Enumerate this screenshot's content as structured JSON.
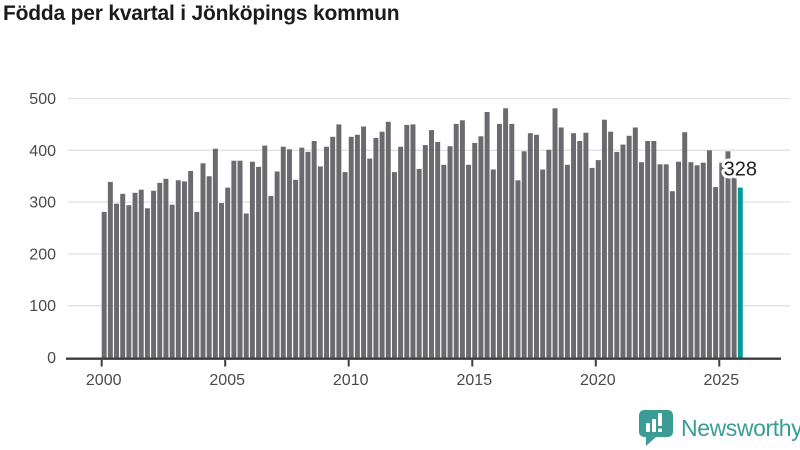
{
  "title": "Födda per kvartal i Jönköpings kommun",
  "branding": {
    "logo_text": "Newsworthy"
  },
  "colors": {
    "bar": "#6a6a6f",
    "highlight": "#009a9a",
    "gridline": "#e2e2e2",
    "axis": "#3d3d3d",
    "tick_label": "#4a4a4a",
    "title_text": "#1b1b1b",
    "value_label_text": "#222222",
    "brand": "#3a9c94"
  },
  "chart_data": {
    "type": "bar",
    "title": "Födda per kvartal i Jönköpings kommun",
    "frequency": "quarterly",
    "start_period": "2000 Q1",
    "end_period": "2025 Q4",
    "ylim": [
      0,
      500
    ],
    "yticks": [
      0,
      100,
      200,
      300,
      400,
      500
    ],
    "xticks": [
      {
        "label": "2000",
        "index": 0
      },
      {
        "label": "2005",
        "index": 20
      },
      {
        "label": "2010",
        "index": 40
      },
      {
        "label": "2015",
        "index": 60
      },
      {
        "label": "2020",
        "index": 80
      },
      {
        "label": "2025",
        "index": 100
      }
    ],
    "grid": "horizontal",
    "legend": "none",
    "values": [
      281,
      339,
      297,
      316,
      294,
      318,
      324,
      288,
      322,
      337,
      345,
      295,
      342,
      340,
      360,
      281,
      375,
      350,
      403,
      298,
      328,
      380,
      380,
      278,
      378,
      368,
      409,
      312,
      359,
      407,
      402,
      343,
      405,
      397,
      418,
      369,
      407,
      426,
      450,
      358,
      426,
      430,
      446,
      384,
      424,
      436,
      455,
      358,
      407,
      449,
      450,
      364,
      410,
      439,
      416,
      372,
      408,
      451,
      458,
      372,
      414,
      427,
      474,
      363,
      451,
      481,
      451,
      342,
      398,
      433,
      430,
      363,
      401,
      481,
      444,
      372,
      433,
      418,
      434,
      366,
      381,
      459,
      436,
      397,
      411,
      428,
      444,
      377,
      418,
      418,
      373,
      373,
      321,
      378,
      435,
      377,
      371,
      376,
      400,
      329,
      376,
      398,
      359,
      328
    ],
    "highlight_index": 103,
    "highlight_value": 328,
    "highlight_label": "328"
  }
}
